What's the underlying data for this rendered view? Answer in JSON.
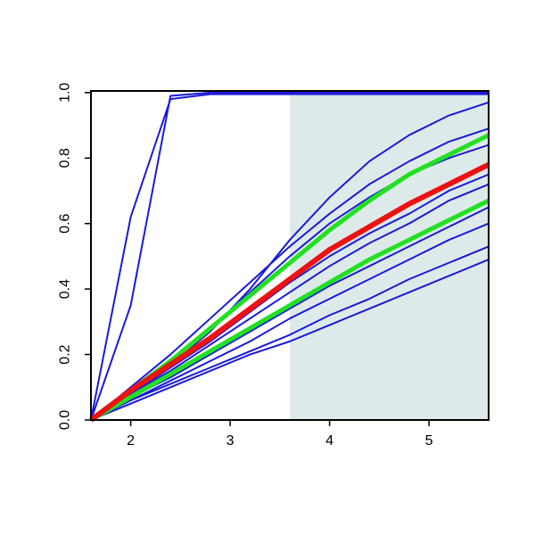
{
  "chart_data": {
    "type": "line",
    "x": [
      1.6,
      2.0,
      2.4,
      2.8,
      3.2,
      3.6,
      4.0,
      4.4,
      4.8,
      5.2,
      5.6
    ],
    "xlim": [
      1.6,
      5.6
    ],
    "ylim": [
      0,
      1.005
    ],
    "xticks": [
      2,
      3,
      4,
      5
    ],
    "yticks": [
      {
        "value": 0,
        "label": "0.0"
      },
      0.2,
      0.4,
      0.6,
      0.8,
      {
        "value": 1,
        "label": "1.0"
      }
    ],
    "shaded_region": {
      "x": [
        3.6,
        5.6
      ],
      "color": "#deeaea"
    },
    "series": [
      {
        "color": "#1a1ad8",
        "width": 2,
        "values": [
          0,
          0.62,
          0.98,
          0.995,
          0.995,
          0.995,
          0.995,
          0.995,
          0.995,
          0.995,
          0.995
        ]
      },
      {
        "color": "#1a1ad8",
        "width": 2,
        "values": [
          0,
          0.35,
          0.99,
          1,
          1,
          1,
          1,
          1,
          1,
          1,
          1
        ]
      },
      {
        "color": "#1a1ad8",
        "width": 2,
        "values": [
          0,
          0.08,
          0.17,
          0.27,
          0.4,
          0.55,
          0.68,
          0.79,
          0.87,
          0.93,
          0.97
        ]
      },
      {
        "color": "#1a1ad8",
        "width": 2,
        "values": [
          0,
          0.1,
          0.2,
          0.31,
          0.42,
          0.53,
          0.63,
          0.72,
          0.79,
          0.85,
          0.89
        ]
      },
      {
        "color": "#1a1ad8",
        "width": 2,
        "values": [
          0,
          0.09,
          0.18,
          0.28,
          0.39,
          0.5,
          0.6,
          0.68,
          0.75,
          0.8,
          0.84
        ]
      },
      {
        "color": "#1a1ad8",
        "width": 2,
        "values": [
          0,
          0.08,
          0.16,
          0.24,
          0.33,
          0.42,
          0.5,
          0.57,
          0.63,
          0.7,
          0.75
        ]
      },
      {
        "color": "#1a1ad8",
        "width": 2,
        "values": [
          0,
          0.08,
          0.15,
          0.23,
          0.31,
          0.39,
          0.47,
          0.54,
          0.6,
          0.67,
          0.72
        ]
      },
      {
        "color": "#1a1ad8",
        "width": 2,
        "values": [
          0,
          0.07,
          0.13,
          0.2,
          0.27,
          0.34,
          0.41,
          0.47,
          0.53,
          0.59,
          0.65
        ]
      },
      {
        "color": "#1a1ad8",
        "width": 2,
        "values": [
          0,
          0.06,
          0.12,
          0.18,
          0.24,
          0.31,
          0.37,
          0.43,
          0.49,
          0.55,
          0.6
        ]
      },
      {
        "color": "#1a1ad8",
        "width": 2,
        "values": [
          0,
          0.06,
          0.11,
          0.16,
          0.21,
          0.26,
          0.32,
          0.37,
          0.43,
          0.48,
          0.53
        ]
      },
      {
        "color": "#1a1ad8",
        "width": 2,
        "values": [
          0,
          0.05,
          0.1,
          0.15,
          0.2,
          0.24,
          0.29,
          0.34,
          0.39,
          0.44,
          0.49
        ]
      },
      {
        "color": "#22e022",
        "width": 5,
        "values": [
          0,
          0.09,
          0.18,
          0.28,
          0.38,
          0.48,
          0.58,
          0.67,
          0.75,
          0.81,
          0.87
        ]
      },
      {
        "color": "#22e022",
        "width": 5,
        "values": [
          0,
          0.07,
          0.14,
          0.21,
          0.28,
          0.35,
          0.42,
          0.49,
          0.55,
          0.61,
          0.67
        ]
      },
      {
        "color": "#ee1111",
        "width": 6,
        "values": [
          0,
          0.09,
          0.17,
          0.25,
          0.34,
          0.43,
          0.52,
          0.59,
          0.66,
          0.72,
          0.78
        ]
      }
    ]
  }
}
